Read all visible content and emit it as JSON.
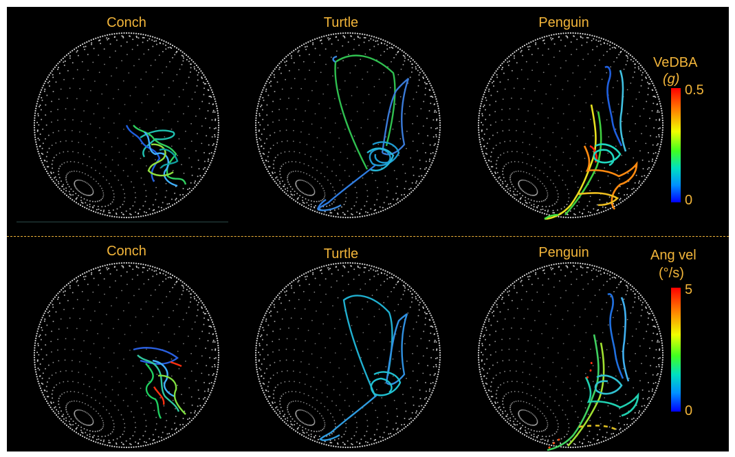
{
  "rows": [
    {
      "titles": [
        "Conch",
        "Turtle",
        "Penguin"
      ],
      "legend": {
        "title": "VeDBA",
        "unit": "(g)",
        "max_label": "0.5",
        "min_label": "0"
      }
    },
    {
      "titles": [
        "Conch",
        "Turtle",
        "Penguin"
      ],
      "legend": {
        "title": "Ang vel",
        "unit": "(°/s)",
        "max_label": "5",
        "min_label": "0"
      }
    }
  ],
  "colors": {
    "background": "#000000",
    "title_text": "#f2b53a",
    "sphere_dots": "#d8d8d8",
    "divider": "#f2b53a"
  }
}
